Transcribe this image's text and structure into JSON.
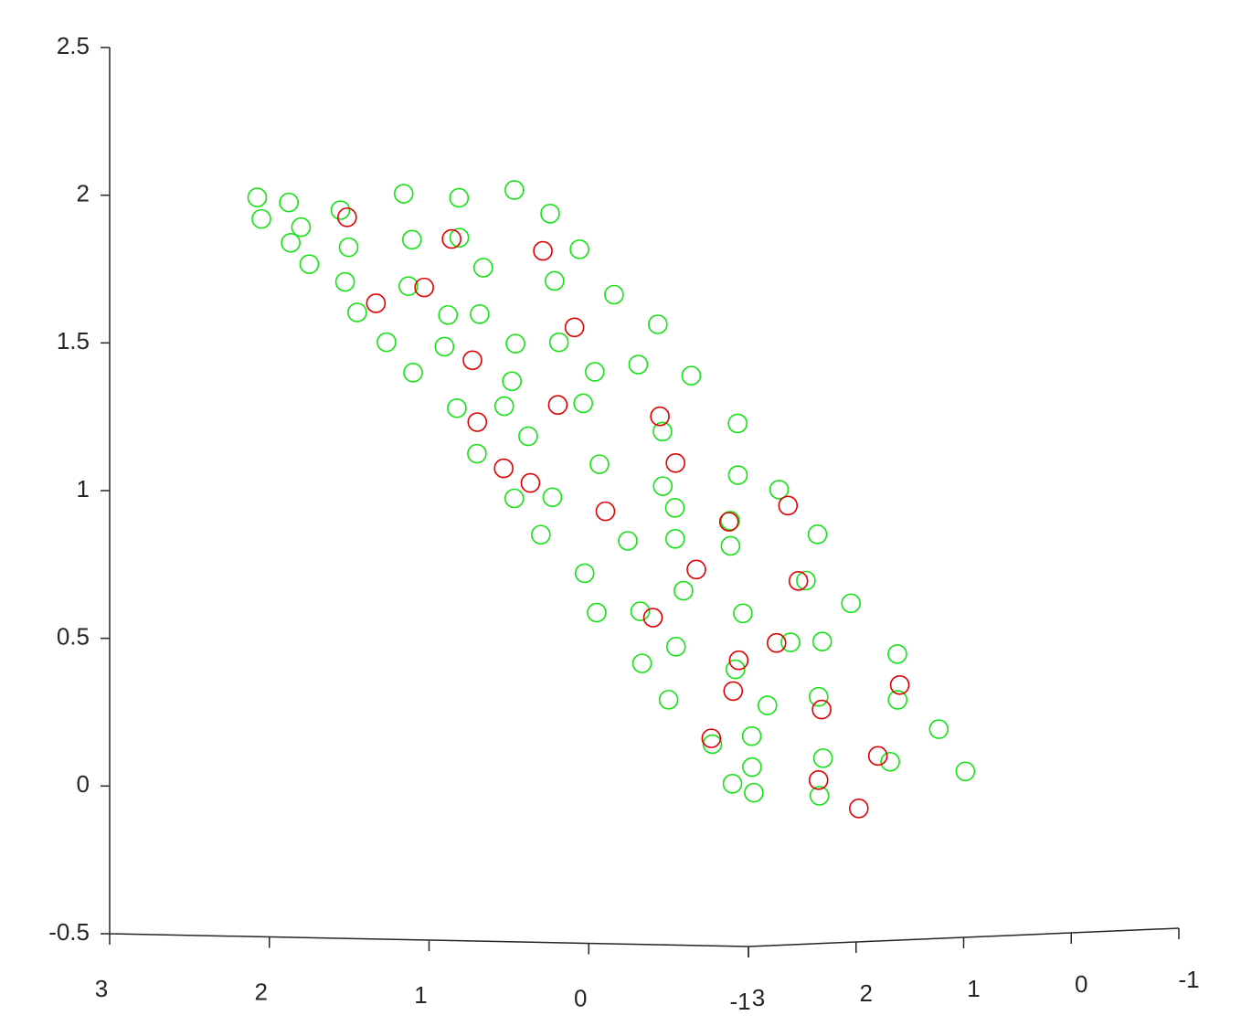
{
  "chart_data": {
    "type": "scatter3d",
    "xlim": [
      -1,
      3
    ],
    "ylim": [
      -1,
      3
    ],
    "zlim": [
      -0.5,
      2.5
    ],
    "xticks": [
      -1,
      0,
      1,
      2,
      3
    ],
    "yticks": [
      -1,
      0,
      1,
      2,
      3
    ],
    "zticks": [
      -0.5,
      0,
      0.5,
      1,
      1.5,
      2,
      2.5
    ],
    "series": [
      {
        "color": "#14e314",
        "x": [
          2.15,
          2.1,
          2.05,
          2.0,
          1.95,
          1.9,
          1.9,
          1.85,
          1.8,
          1.8,
          1.75,
          1.7,
          1.65,
          1.6,
          1.55,
          1.5,
          1.5,
          1.45,
          1.4,
          1.35,
          1.3,
          1.25,
          1.2,
          1.15,
          1.1,
          1.05,
          1.0,
          0.95,
          0.9,
          0.85,
          0.8,
          0.75,
          0.7,
          0.65,
          0.6,
          0.55,
          0.5,
          0.45,
          0.4,
          0.35,
          0.3,
          0.25,
          0.2,
          0.15,
          0.1,
          0.05,
          0.0,
          -0.05,
          -0.1,
          -0.15,
          -0.2,
          -0.25,
          -0.3,
          -0.35,
          -0.4,
          -0.45,
          -0.5,
          -0.55,
          -0.6,
          -0.65,
          -0.7,
          -0.75,
          -0.8,
          -0.85,
          -0.9,
          -0.95,
          -1.0,
          -1.0,
          1.7,
          1.2,
          0.5,
          -0.1,
          -0.6,
          1.4,
          0.9,
          0.2,
          -0.3,
          -0.8,
          1.0,
          0.3
        ],
        "y": [
          2.89,
          2.67,
          3.0,
          2.34,
          2.78,
          1.9,
          2.95,
          1.46,
          2.56,
          1.02,
          3.0,
          2.12,
          0.91,
          2.89,
          1.68,
          2.45,
          0.86,
          3.0,
          1.24,
          2.01,
          2.95,
          0.91,
          2.56,
          1.57,
          3.0,
          0.8,
          2.23,
          1.13,
          2.89,
          1.79,
          0.86,
          2.45,
          3.0,
          1.35,
          2.01,
          0.8,
          2.95,
          2.67,
          1.02,
          1.68,
          3.0,
          0.86,
          2.34,
          1.46,
          2.89,
          0.8,
          2.12,
          3.0,
          1.13,
          1.79,
          0.86,
          2.56,
          2.95,
          1.35,
          2.23,
          0.8,
          3.0,
          1.68,
          1.02,
          2.45,
          2.89,
          0.86,
          2.01,
          1.46,
          3.0,
          0.91,
          2.34,
          2.95,
          1.68,
          1.9,
          1.57,
          2.67,
          2.23,
          2.23,
          2.45,
          1.9,
          1.57,
          2.67,
          1.46,
          1.24
        ],
        "z": [
          2.0,
          1.98,
          1.93,
          1.95,
          1.9,
          2.0,
          1.85,
          1.98,
          1.83,
          2.0,
          1.78,
          1.85,
          1.92,
          1.72,
          1.75,
          1.7,
          1.8,
          1.62,
          1.7,
          1.6,
          1.52,
          1.65,
          1.5,
          1.5,
          1.42,
          1.55,
          1.38,
          1.42,
          1.3,
          1.3,
          1.38,
          1.2,
          1.15,
          1.2,
          1.1,
          1.22,
          1.0,
          1.0,
          1.05,
          0.95,
          0.88,
          1.0,
          0.85,
          0.82,
          0.75,
          0.85,
          0.68,
          0.62,
          0.7,
          0.6,
          0.62,
          0.5,
          0.45,
          0.5,
          0.42,
          0.45,
          0.33,
          0.32,
          0.3,
          0.2,
          0.18,
          0.2,
          0.12,
          0.1,
          0.05,
          0.06,
          0.0,
          0.02,
          1.85,
          1.5,
          1.02,
          0.62,
          0.3,
          1.6,
          1.3,
          0.85,
          0.5,
          0.1,
          1.4,
          0.9
        ]
      },
      {
        "color": "#e00000",
        "x": [
          1.85,
          1.6,
          1.3,
          1.5,
          1.1,
          1.2,
          0.9,
          0.7,
          0.8,
          0.5,
          0.4,
          0.3,
          0.1,
          0.0,
          -0.2,
          -0.1,
          -0.3,
          -0.5,
          -0.6,
          -0.7,
          -0.8,
          -0.9,
          -0.95,
          0.6,
          1.4,
          -0.4,
          0.2,
          -0.65
        ],
        "y": [
          2.5,
          1.9,
          2.6,
          1.2,
          1.5,
          2.3,
          2.7,
          1.3,
          2.1,
          2.8,
          1.6,
          2.4,
          1.0,
          2.0,
          2.7,
          1.2,
          1.7,
          2.4,
          1.0,
          2.9,
          1.5,
          2.2,
          1.9,
          2.9,
          2.9,
          2.2,
          1.4,
          1.8
        ],
        "z": [
          1.93,
          1.85,
          1.7,
          1.8,
          1.55,
          1.45,
          1.25,
          1.25,
          1.3,
          1.05,
          1.1,
          0.95,
          0.95,
          0.75,
          0.6,
          0.7,
          0.5,
          0.35,
          0.35,
          0.2,
          0.12,
          0.05,
          -0.05,
          1.1,
          1.65,
          0.45,
          0.9,
          0.28
        ]
      }
    ]
  }
}
